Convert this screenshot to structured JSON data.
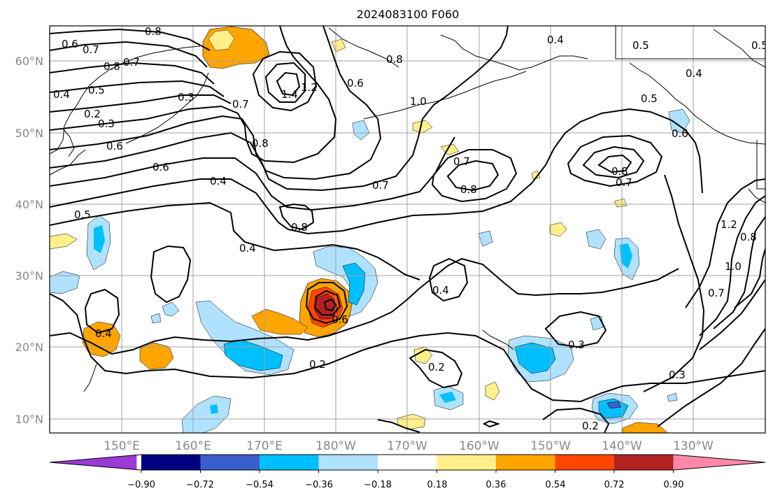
{
  "title": "2024083100 F060",
  "lat_labels": [
    "60°N",
    "50°N",
    "40°N",
    "30°N",
    "20°N",
    "10°N"
  ],
  "lon_labels": [
    "150°E",
    "160°E",
    "170°E",
    "180°W",
    "170°W",
    "160°W",
    "150°W",
    "140°W",
    "130°W"
  ],
  "colorbar": {
    "colors": [
      "#9b3ad4",
      "#000080",
      "#3a5fcd",
      "#00bfff",
      "#b0e2ff",
      "#ffffff",
      "#fff08a",
      "#ffa500",
      "#ff4500",
      "#b22222",
      "#ff88aa"
    ],
    "tick_labels": [
      "−0.90",
      "−0.72",
      "−0.54",
      "−0.36",
      "−0.18",
      "0.18",
      "0.36",
      "0.54",
      "0.72",
      "0.90"
    ]
  },
  "contour_labels": [
    "0.8",
    "0.6",
    "0.7",
    "0.8",
    "0.7",
    "0.4",
    "0.5",
    "0.3",
    "0.2",
    "0.3",
    "0.6",
    "0.6",
    "0.4",
    "0.5",
    "0.7",
    "1.4",
    "1.2",
    "0.6",
    "0.8",
    "1.0",
    "0.8",
    "0.4",
    "0.5",
    "0.4",
    "0.5",
    "0.5",
    "0.6",
    "0.7",
    "0.8",
    "0.7",
    "0.8",
    "0.8",
    "0.7",
    "1.2",
    "0.8",
    "1.0",
    "0.7",
    "0.4",
    "0.4",
    "0.4",
    "0.6",
    "0.2",
    "0.2",
    "0.3",
    "0.3",
    "0.2"
  ]
}
